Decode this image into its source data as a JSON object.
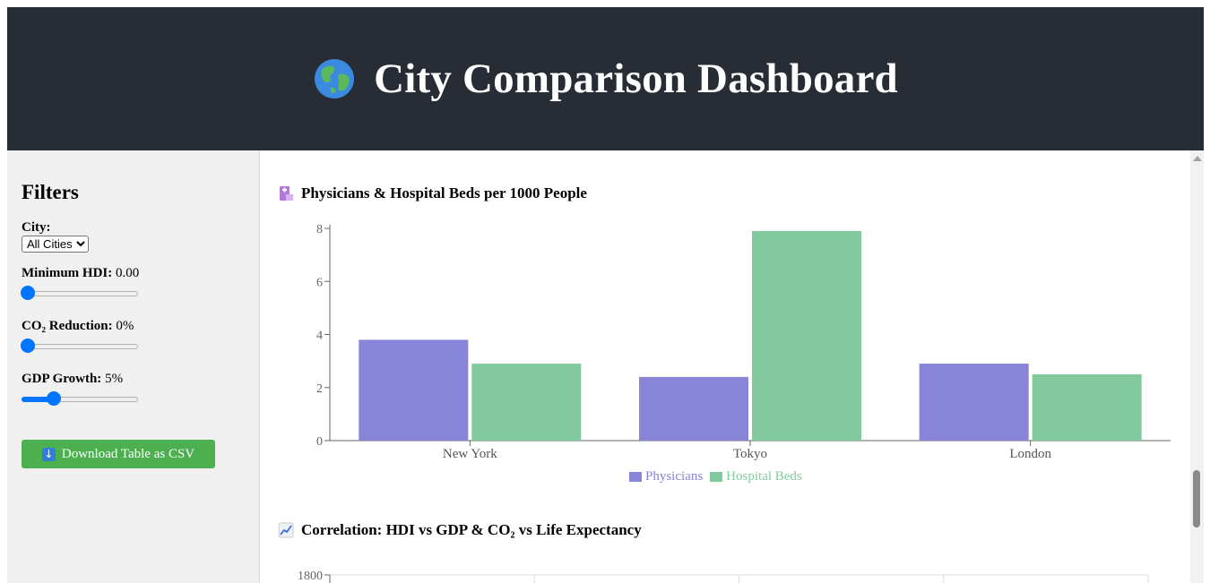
{
  "header": {
    "title": "City Comparison Dashboard",
    "icon": "globe-icon"
  },
  "sidebar": {
    "title": "Filters",
    "city": {
      "label": "City:",
      "selected": "All Cities"
    },
    "min_hdi": {
      "label": "Minimum HDI:",
      "value_text": "0.00",
      "fraction": 0.0
    },
    "co2": {
      "label": "CO₂ Reduction:",
      "value_text": "0%",
      "fraction": 0.0
    },
    "gdp": {
      "label": "GDP Growth:",
      "value_text": "5%",
      "fraction": 0.25
    },
    "download_label": "Download Table as CSV",
    "download_icon": "down-arrow-icon"
  },
  "section1": {
    "title": "Physicians & Hospital Beds per 1000 People",
    "icon": "hospital-icon"
  },
  "section2": {
    "title": "Correlation: HDI vs GDP & CO₂ vs Life Expectancy",
    "icon": "chart-increasing-icon"
  },
  "colors": {
    "physicians": "#8884d8",
    "beds": "#82ca9d",
    "header": "#272c35",
    "button": "#4caf50",
    "slider": "#0075ff"
  },
  "chart_data": [
    {
      "type": "bar",
      "title": "Physicians & Hospital Beds per 1000 People",
      "categories": [
        "New York",
        "Tokyo",
        "London"
      ],
      "series": [
        {
          "name": "Physicians",
          "values": [
            3.8,
            2.4,
            2.9
          ]
        },
        {
          "name": "Hospital Beds",
          "values": [
            2.9,
            7.9,
            2.5
          ]
        }
      ],
      "yticks": [
        "0",
        "2",
        "4",
        "6",
        "8"
      ],
      "ylim": [
        0,
        8
      ],
      "legend": "bottom"
    },
    {
      "type": "scatter",
      "title": "Correlation: HDI vs GDP & CO₂ vs Life Expectancy",
      "visible_yticks": [
        "1800"
      ],
      "grid": true
    }
  ]
}
